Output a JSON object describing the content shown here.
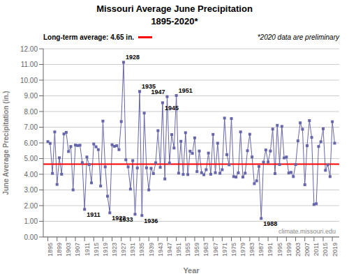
{
  "chart_data": {
    "type": "line",
    "title": "Missouri Average June Precipitation",
    "subtitle": "1895-2020*",
    "x_label": "Year",
    "y_label": "June Average Precipitation (in.)",
    "x": [
      1895,
      1896,
      1897,
      1898,
      1899,
      1900,
      1901,
      1902,
      1903,
      1904,
      1905,
      1906,
      1907,
      1908,
      1909,
      1910,
      1911,
      1912,
      1913,
      1914,
      1915,
      1916,
      1917,
      1918,
      1919,
      1920,
      1921,
      1922,
      1923,
      1924,
      1925,
      1926,
      1927,
      1928,
      1929,
      1930,
      1931,
      1932,
      1933,
      1934,
      1935,
      1936,
      1937,
      1938,
      1939,
      1940,
      1941,
      1942,
      1943,
      1944,
      1945,
      1946,
      1947,
      1948,
      1949,
      1950,
      1951,
      1952,
      1953,
      1954,
      1955,
      1956,
      1957,
      1958,
      1959,
      1960,
      1961,
      1962,
      1963,
      1964,
      1965,
      1966,
      1967,
      1968,
      1969,
      1970,
      1971,
      1972,
      1973,
      1974,
      1975,
      1976,
      1977,
      1978,
      1979,
      1980,
      1981,
      1982,
      1983,
      1984,
      1985,
      1986,
      1987,
      1988,
      1989,
      1990,
      1991,
      1992,
      1993,
      1994,
      1995,
      1996,
      1997,
      1998,
      1999,
      2000,
      2001,
      2002,
      2003,
      2004,
      2005,
      2006,
      2007,
      2008,
      2009,
      2010,
      2011,
      2012,
      2013,
      2014,
      2015,
      2016,
      2017,
      2018,
      2019,
      2020
    ],
    "values": [
      6.08,
      5.97,
      4.05,
      6.7,
      3.35,
      5.05,
      4.0,
      6.57,
      6.67,
      5.45,
      5.77,
      3.0,
      5.86,
      5.83,
      5.85,
      4.74,
      1.76,
      5.1,
      4.62,
      3.45,
      5.93,
      5.75,
      5.57,
      3.25,
      7.39,
      4.47,
      2.6,
      1.54,
      5.88,
      5.78,
      5.82,
      5.57,
      7.36,
      11.14,
      4.92,
      4.47,
      3.05,
      4.87,
      1.45,
      4.4,
      9.28,
      1.37,
      7.9,
      4.41,
      3.0,
      4.38,
      4.04,
      4.73,
      6.78,
      4.44,
      8.56,
      3.7,
      8.95,
      4.72,
      6.53,
      5.67,
      9.02,
      4.07,
      6.1,
      3.99,
      6.65,
      3.98,
      5.47,
      5.33,
      6.32,
      4.17,
      5.48,
      4.1,
      3.97,
      4.29,
      5.35,
      4.0,
      6.54,
      4.1,
      5.98,
      4.06,
      4.29,
      7.58,
      5.25,
      4.6,
      7.55,
      3.85,
      3.82,
      4.09,
      6.7,
      3.82,
      4.07,
      5.5,
      6.55,
      5.1,
      3.4,
      3.58,
      4.5,
      1.18,
      4.77,
      5.55,
      4.78,
      5.48,
      6.88,
      4.04,
      7.12,
      4.62,
      7.05,
      5.04,
      5.1,
      4.08,
      4.12,
      3.85,
      4.62,
      6.13,
      7.28,
      6.87,
      3.33,
      5.82,
      7.42,
      6.35,
      2.07,
      2.12,
      5.77,
      6.07,
      6.9,
      4.25,
      4.6,
      3.85,
      7.35,
      5.98
    ],
    "color": "#6666AA",
    "marker": "square",
    "xlim": [
      1893,
      2022
    ],
    "xticks": [
      1895,
      1899,
      1903,
      1907,
      1911,
      1915,
      1919,
      1923,
      1927,
      1931,
      1935,
      1939,
      1943,
      1947,
      1951,
      1955,
      1959,
      1963,
      1967,
      1971,
      1975,
      1979,
      1983,
      1987,
      1991,
      1995,
      1999,
      2003,
      2007,
      2011,
      2015,
      2019
    ],
    "ylim": [
      0,
      12
    ],
    "yticks": [
      {
        "value": 0,
        "label": "0.00"
      },
      {
        "value": 1,
        "label": "1.00"
      },
      {
        "value": 2,
        "label": "2.00"
      },
      {
        "value": 3,
        "label": "3.00"
      },
      {
        "value": 4,
        "label": "4.00"
      },
      {
        "value": 5,
        "label": "5.00"
      },
      {
        "value": 6,
        "label": "6.00"
      },
      {
        "value": 7,
        "label": "7.00"
      },
      {
        "value": 8,
        "label": "8.00"
      },
      {
        "value": 9,
        "label": "9.00"
      },
      {
        "value": 10,
        "label": "10.00"
      },
      {
        "value": 11,
        "label": "11.00"
      },
      {
        "value": 12,
        "label": "12.00"
      }
    ],
    "grid": true,
    "hlines": [
      {
        "value": 4.65,
        "label": "Long-term average: 4.65 in.",
        "color": "#FF0000"
      }
    ],
    "note": "*2020 data are preliminary",
    "source": "climate.missouri.edu",
    "annotations": [
      {
        "text": "1911",
        "x": 1911,
        "y": 1.76
      },
      {
        "text": "1922",
        "x": 1922,
        "y": 1.54
      },
      {
        "text": "1928",
        "x": 1928,
        "y": 11.14
      },
      {
        "text": "1933",
        "x": 1933,
        "y": 1.45
      },
      {
        "text": "1935",
        "x": 1935,
        "y": 9.28
      },
      {
        "text": "1936",
        "x": 1936,
        "y": 1.37
      },
      {
        "text": "1945",
        "x": 1945,
        "y": 8.56
      },
      {
        "text": "1947",
        "x": 1947,
        "y": 8.95
      },
      {
        "text": "1951",
        "x": 1951,
        "y": 9.02
      },
      {
        "text": "1988",
        "x": 1988,
        "y": 1.18
      }
    ]
  }
}
